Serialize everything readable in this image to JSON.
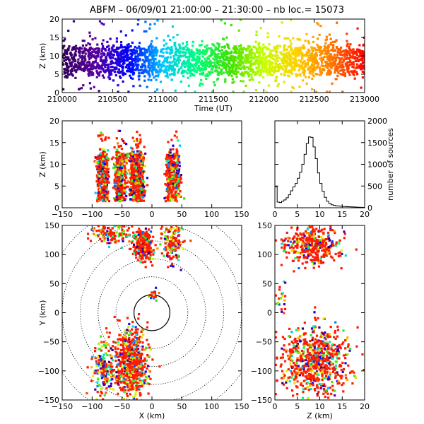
{
  "title": "ABFM – 06/09/01 21:00:00 – 21:30:00 – nb loc.=   15073",
  "chart_data": [
    {
      "id": "time_height",
      "type": "scatter",
      "xlabel": "Time (UT)",
      "ylabel": "Z (km)",
      "xlim": [
        210000,
        213000
      ],
      "ylim": [
        0,
        20
      ],
      "xticks": [
        "210000",
        "210500",
        "211000",
        "211500",
        "212000",
        "212500",
        "213000"
      ],
      "yticks": [
        "0",
        "5",
        "10",
        "15",
        "20"
      ],
      "color_by": "time",
      "colormap": [
        "#30005a",
        "#5a00a0",
        "#0000ff",
        "#00c8ff",
        "#00ff80",
        "#40e000",
        "#c8ff00",
        "#ffd000",
        "#ff7800",
        "#ff0000"
      ],
      "note_values": {
        "z_core": [
          5,
          12
        ]
      }
    },
    {
      "id": "x_z",
      "type": "scatter",
      "xlabel": "",
      "ylabel": "Z (km)",
      "xlim": [
        -150,
        150
      ],
      "ylim": [
        0,
        20
      ],
      "xticks": [
        "−150",
        "−100",
        "−50",
        "0",
        "50",
        "100",
        "150"
      ],
      "yticks": [
        "0",
        "5",
        "10",
        "15",
        "20"
      ],
      "clusters_x": [
        [
          -90,
          -75
        ],
        [
          -60,
          -45
        ],
        [
          -35,
          -15
        ],
        [
          25,
          45
        ]
      ]
    },
    {
      "id": "z_histogram",
      "type": "bar",
      "xlabel": "",
      "ylabel": "number of sources",
      "xlim": [
        0,
        20
      ],
      "ylim": [
        0,
        2000
      ],
      "xticks": [
        "0",
        "5",
        "10",
        "15",
        "20"
      ],
      "yticks": [
        "0",
        "500",
        "1000",
        "1500",
        "2000"
      ],
      "x": [
        0,
        0.5,
        1,
        1.5,
        2,
        2.5,
        3,
        3.5,
        4,
        4.5,
        5,
        5.5,
        6,
        6.5,
        7,
        7.5,
        8,
        8.5,
        9,
        9.5,
        10,
        10.5,
        11,
        11.5,
        12,
        12.5,
        13,
        13.5,
        14,
        14.5,
        15,
        15.5,
        16,
        16.5,
        17,
        17.5,
        18,
        18.5,
        19,
        19.5
      ],
      "values": [
        480,
        130,
        120,
        150,
        180,
        230,
        300,
        390,
        480,
        560,
        680,
        820,
        1000,
        1230,
        1480,
        1630,
        1620,
        1400,
        1130,
        800,
        560,
        380,
        240,
        150,
        100,
        70,
        55,
        45,
        40,
        35,
        30,
        28,
        25,
        22,
        20,
        18,
        15,
        12,
        10,
        8
      ]
    },
    {
      "id": "x_y",
      "type": "scatter",
      "xlabel": "X (km)",
      "ylabel": "Y (km)",
      "xlim": [
        -150,
        150
      ],
      "ylim": [
        -150,
        150
      ],
      "xticks": [
        "−150",
        "−100",
        "−50",
        "0",
        "50",
        "100",
        "150"
      ],
      "yticks": [
        "−150",
        "−100",
        "−50",
        "0",
        "50",
        "100",
        "150"
      ],
      "range_rings_km": [
        30,
        60,
        90,
        120,
        150,
        180,
        210
      ]
    },
    {
      "id": "z_y",
      "type": "scatter",
      "xlabel": "Z (km)",
      "ylabel": "",
      "xlim": [
        0,
        20
      ],
      "ylim": [
        -150,
        150
      ],
      "xticks": [
        "0",
        "5",
        "10",
        "15",
        "20"
      ],
      "yticks": [
        "−150",
        "−100",
        "−50",
        "0",
        "50",
        "100",
        "150"
      ]
    }
  ]
}
